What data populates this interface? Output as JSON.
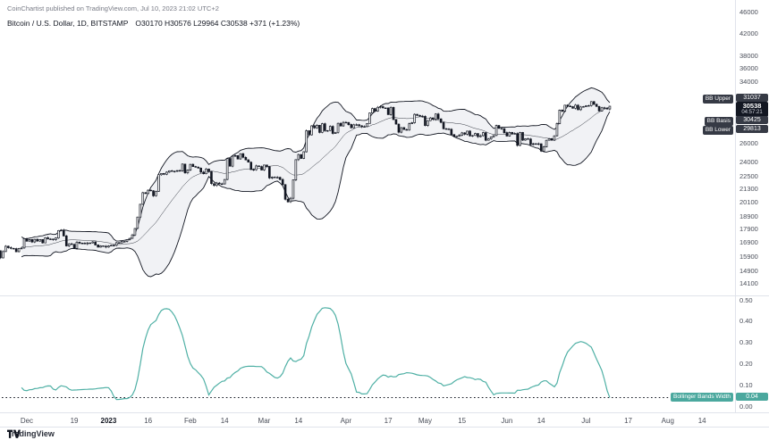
{
  "header": {
    "attribution": "CoinChartist published on TradingView.com, Jul 10, 2023 21:02 UTC+2",
    "title": "Bitcoin / U.S. Dollar, 1D, BITSTAMP",
    "ohlc": "O30170  H30576  L29964  C30538  +371 (+1.23%)"
  },
  "price_labels": {
    "bb_upper": {
      "label": "BB Upper",
      "value": "31037"
    },
    "last": {
      "value": "30538",
      "countdown": "04:57:21"
    },
    "bb_basis": {
      "label": "BB Basis",
      "value": "30425"
    },
    "bb_lower": {
      "label": "BB Lower",
      "value": "29813"
    }
  },
  "indicator": {
    "name": "Bollinger Bands Width",
    "value": "0.04"
  },
  "footer": {
    "brand": "TradingView"
  },
  "axes": {
    "price_ticks": [
      "46000",
      "42000",
      "38000",
      "36000",
      "34000",
      "26000",
      "24000",
      "22500",
      "21300",
      "20100",
      "18900",
      "17900",
      "16900",
      "15900",
      "14900",
      "14100"
    ],
    "bbw_ticks": [
      "0.50",
      "0.40",
      "0.30",
      "0.20",
      "0.10",
      "0.00"
    ],
    "time_ticks": [
      {
        "label": "Dec",
        "i": 21
      },
      {
        "label": "19",
        "i": 39
      },
      {
        "label": "2023",
        "i": 52,
        "bold": true
      },
      {
        "label": "16",
        "i": 67
      },
      {
        "label": "Feb",
        "i": 83
      },
      {
        "label": "14",
        "i": 96
      },
      {
        "label": "Mar",
        "i": 111
      },
      {
        "label": "14",
        "i": 124
      },
      {
        "label": "Apr",
        "i": 142
      },
      {
        "label": "17",
        "i": 158
      },
      {
        "label": "May",
        "i": 172
      },
      {
        "label": "15",
        "i": 186
      },
      {
        "label": "Jun",
        "i": 203
      },
      {
        "label": "14",
        "i": 216
      },
      {
        "label": "Jul",
        "i": 233
      },
      {
        "label": "17",
        "i": 249
      },
      {
        "label": "Aug",
        "i": 264
      },
      {
        "label": "14",
        "i": 277
      }
    ]
  },
  "chart_data": {
    "type": "candlestick",
    "title": "Bitcoin / U.S. Dollar",
    "interval": "1D",
    "exchange": "BITSTAMP",
    "price_scale": "log",
    "start_date": "2022-11-10",
    "last": {
      "open": 30170,
      "high": 30576,
      "low": 29964,
      "close": 30538,
      "change_abs": 371,
      "change_pct": 1.23
    },
    "bollinger": {
      "period": 20,
      "stddev": 2,
      "upper": 31037,
      "basis": 30425,
      "lower": 29813
    },
    "bb_width": {
      "name": "Bollinger Bands Width",
      "last": 0.04,
      "threshold": 0.04,
      "color": "#4fb0a5"
    },
    "colors": {
      "candle": "#131722",
      "band_line": "#131722",
      "band_fill": "rgba(120,132,156,0.10)",
      "badge_dark": "#363a45",
      "badge_teal": "#4ba89e"
    },
    "closes": [
      17590,
      17070,
      16800,
      16330,
      16620,
      16900,
      16660,
      16700,
      16700,
      16700,
      16280,
      15780,
      16220,
      16600,
      16500,
      16450,
      16430,
      16210,
      16440,
      16480,
      17160,
      16970,
      17090,
      16910,
      17110,
      16970,
      17090,
      16840,
      17230,
      17130,
      17130,
      17090,
      17210,
      17780,
      17810,
      17360,
      16630,
      16780,
      16740,
      16440,
      16900,
      16830,
      16820,
      16780,
      16840,
      16840,
      16920,
      16700,
      16540,
      16630,
      16600,
      16540,
      16620,
      16670,
      16670,
      16860,
      16840,
      16950,
      16950,
      17090,
      17180,
      17440,
      17940,
      18850,
      19930,
      20960,
      20880,
      21190,
      21140,
      20680,
      21080,
      22670,
      22790,
      22710,
      22920,
      23060,
      23020,
      23010,
      23080,
      23030,
      23740,
      22840,
      23130,
      23720,
      23490,
      23430,
      23330,
      22930,
      22760,
      23240,
      22960,
      21800,
      21630,
      21860,
      21780,
      21770,
      22200,
      24320,
      23520,
      24570,
      24630,
      24280,
      24840,
      24450,
      24180,
      23940,
      23180,
      23160,
      23550,
      23490,
      23140,
      23640,
      23470,
      22350,
      22430,
      22410,
      22410,
      22200,
      21710,
      20370,
      20150,
      20460,
      22160,
      24200,
      24740,
      24330,
      25050,
      27450,
      26960,
      28040,
      27790,
      28110,
      27250,
      28300,
      27450,
      27470,
      27970,
      27120,
      27260,
      28350,
      28030,
      28470,
      28460,
      28200,
      27800,
      28170,
      28180,
      28040,
      27930,
      27950,
      28330,
      29650,
      30230,
      29890,
      30400,
      30480,
      30310,
      30310,
      29450,
      30390,
      28820,
      28250,
      27270,
      27820,
      27590,
      27520,
      28300,
      28420,
      29480,
      29340,
      29250,
      29230,
      28080,
      28680,
      29030,
      28850,
      29530,
      28900,
      28450,
      27690,
      27650,
      27620,
      27000,
      26800,
      26780,
      26930,
      27190,
      27030,
      27400,
      26830,
      26890,
      27120,
      26750,
      26860,
      27220,
      26330,
      26480,
      26720,
      26870,
      28080,
      27740,
      27700,
      27220,
      26820,
      27250,
      27070,
      27120,
      25750,
      27240,
      26350,
      26500,
      26480,
      25850,
      25940,
      25900,
      25930,
      25120,
      25580,
      26330,
      26510,
      26340,
      26850,
      28320,
      30020,
      29890,
      30690,
      30550,
      30480,
      30270,
      30690,
      30080,
      30450,
      30480,
      30590,
      30620,
      31160,
      30780,
      30510,
      29910,
      30340,
      30290,
      30170,
      30538
    ]
  }
}
